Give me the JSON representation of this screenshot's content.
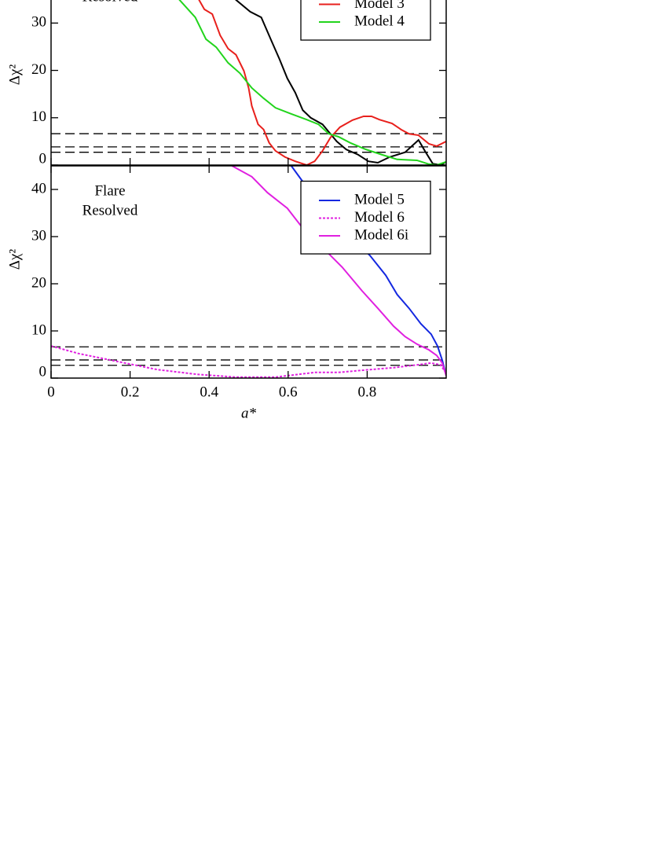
{
  "chart_data": [
    {
      "type": "line",
      "annotation": [
        "Resolved"
      ],
      "ylabel": "Δχ²",
      "xlim": [
        0,
        1
      ],
      "ylim": [
        0,
        45
      ],
      "yticks": [
        0,
        10,
        20,
        30
      ],
      "hlines": [
        2.71,
        3.84,
        6.63
      ],
      "legend": "upper right",
      "series": [
        {
          "color": "#000000",
          "x": [
            0.448,
            0.468,
            0.504,
            0.532,
            0.558,
            0.578,
            0.598,
            0.618,
            0.637,
            0.657,
            0.687,
            0.707,
            0.723,
            0.747,
            0.777,
            0.803,
            0.827,
            0.857,
            0.896,
            0.93,
            0.946,
            0.966,
            0.986,
            1.0
          ],
          "values": [
            36.5,
            34.9,
            32.4,
            31.2,
            26.2,
            22.4,
            18.3,
            15.3,
            11.6,
            10.0,
            8.6,
            6.6,
            5.0,
            3.3,
            2.2,
            0.8,
            0.5,
            1.7,
            2.7,
            5.3,
            3.0,
            0.3,
            0,
            0.7
          ]
        },
        {
          "name": "Model 3",
          "color": "#e8201c",
          "x": [
            0.369,
            0.388,
            0.408,
            0.428,
            0.448,
            0.468,
            0.488,
            0.5,
            0.508,
            0.524,
            0.538,
            0.552,
            0.568,
            0.592,
            0.618,
            0.647,
            0.667,
            0.687,
            0.707,
            0.731,
            0.763,
            0.791,
            0.811,
            0.831,
            0.863,
            0.886,
            0.906,
            0.93,
            0.956,
            0.976,
            1.0
          ],
          "values": [
            35.7,
            32.9,
            31.9,
            27.4,
            24.6,
            23.3,
            19.9,
            16.3,
            12.5,
            8.6,
            7.5,
            4.7,
            3.0,
            1.7,
            0.8,
            0,
            0.8,
            3.0,
            5.8,
            8.0,
            9.5,
            10.3,
            10.3,
            9.6,
            8.8,
            7.5,
            6.6,
            6.3,
            4.5,
            4.0,
            5.0
          ]
        },
        {
          "name": "Model 4",
          "color": "#22d41c",
          "x": [
            0.31,
            0.325,
            0.365,
            0.392,
            0.418,
            0.448,
            0.478,
            0.508,
            0.538,
            0.568,
            0.608,
            0.647,
            0.677,
            0.703,
            0.727,
            0.757,
            0.797,
            0.837,
            0.876,
            0.926,
            0.956,
            0.976,
            1.0
          ],
          "values": [
            36.2,
            34.9,
            31.2,
            26.6,
            24.9,
            21.6,
            19.4,
            16.3,
            14.1,
            12.1,
            10.8,
            9.6,
            8.6,
            6.6,
            6.0,
            4.7,
            3.3,
            2.2,
            1.2,
            1.0,
            0.2,
            0,
            0.7
          ]
        }
      ]
    },
    {
      "type": "line",
      "annotation": [
        "Flare",
        "Resolved"
      ],
      "ylabel": "Δχ²",
      "xlabel": "a*",
      "xlim": [
        0,
        1
      ],
      "xticks": [
        0,
        0.2,
        0.4,
        0.6,
        0.8
      ],
      "ylim": [
        0,
        45
      ],
      "yticks": [
        0,
        10,
        20,
        30,
        40
      ],
      "hlines": [
        2.71,
        3.84,
        6.63
      ],
      "legend": "upper right",
      "series": [
        {
          "name": "Model 5",
          "color": "#1428e0",
          "x": [
            0.608,
            0.647,
            0.687,
            0.727,
            0.767,
            0.807,
            0.847,
            0.876,
            0.906,
            0.936,
            0.962,
            0.978,
            0.99,
            1.0
          ],
          "values": [
            45,
            40.5,
            36.8,
            33,
            29.3,
            26,
            21.8,
            17.7,
            14.8,
            11.5,
            9.3,
            6.8,
            3.8,
            0.5
          ]
        },
        {
          "name": "Model 6",
          "color": "#e020e0",
          "dash": "dotted",
          "x": [
            0,
            0.07,
            0.169,
            0.269,
            0.369,
            0.468,
            0.568,
            0.627,
            0.667,
            0.727,
            0.807,
            0.867,
            0.926,
            0.962,
            0.986,
            1.0
          ],
          "values": [
            6.8,
            5.2,
            3.5,
            1.8,
            0.8,
            0.2,
            0.2,
            0.8,
            1.2,
            1.2,
            1.8,
            2.2,
            2.8,
            3.2,
            2.8,
            1.0
          ]
        },
        {
          "name": "Model 6i",
          "color": "#e020e0",
          "x": [
            0.458,
            0.508,
            0.548,
            0.598,
            0.637,
            0.687,
            0.737,
            0.787,
            0.827,
            0.867,
            0.896,
            0.926,
            0.956,
            0.976,
            0.99,
            1.0
          ],
          "values": [
            45,
            42.7,
            39.3,
            36,
            31.8,
            27.7,
            23.5,
            18.5,
            14.8,
            11,
            8.8,
            7.2,
            6,
            4.8,
            3.2,
            0.5
          ]
        }
      ]
    }
  ]
}
